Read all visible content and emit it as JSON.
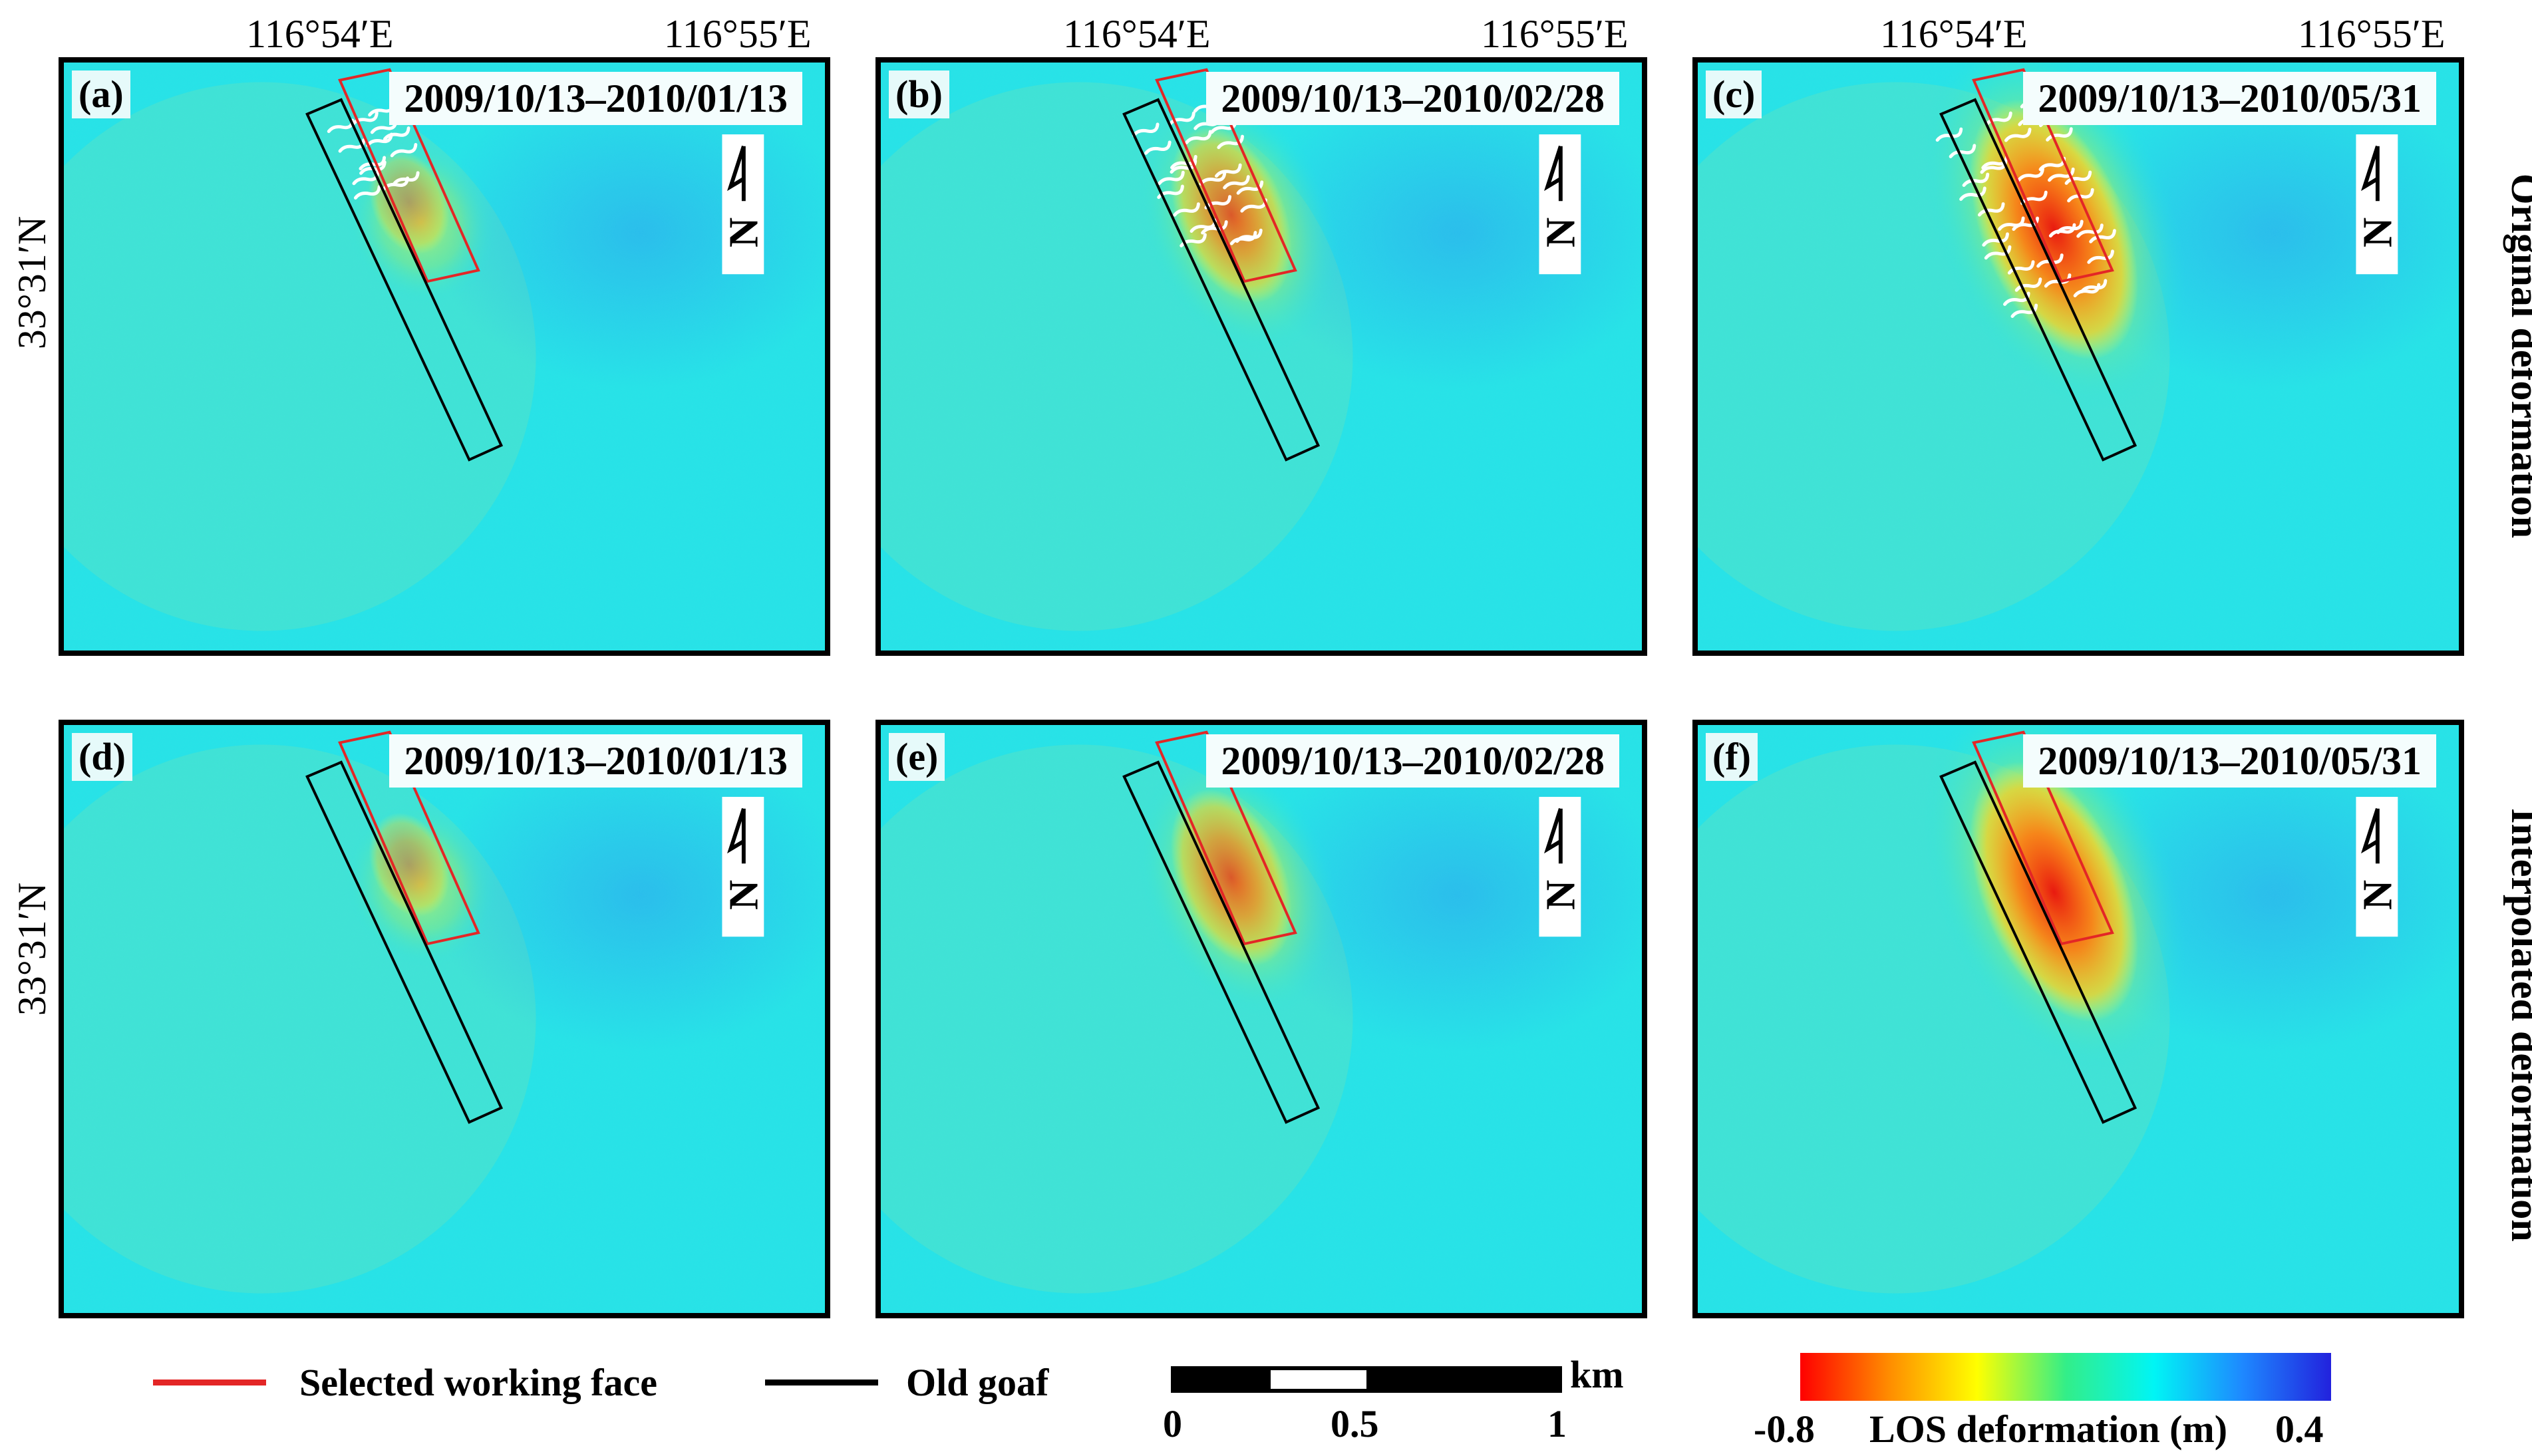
{
  "panels": [
    {
      "tag": "(a)",
      "date": "2009/10/13–2010/01/13",
      "level": 0.25,
      "holes": true
    },
    {
      "tag": "(b)",
      "date": "2009/10/13–2010/02/28",
      "level": 0.6,
      "holes": true
    },
    {
      "tag": "(c)",
      "date": "2009/10/13–2010/05/31",
      "level": 1.0,
      "holes": true
    },
    {
      "tag": "(d)",
      "date": "2009/10/13–2010/01/13",
      "level": 0.25,
      "holes": false
    },
    {
      "tag": "(e)",
      "date": "2009/10/13–2010/02/28",
      "level": 0.6,
      "holes": false
    },
    {
      "tag": "(f)",
      "date": "2009/10/13–2010/05/31",
      "level": 1.0,
      "holes": false
    }
  ],
  "north_arrow_letter": "N",
  "longitude_labels": [
    "116°54′E",
    "116°55′E"
  ],
  "latitude_label": "33°31′N",
  "row_labels": [
    "Original deformation",
    "Interpolated deformation"
  ],
  "legend": {
    "working_face": {
      "label": "Selected working face",
      "color": "#e32626"
    },
    "old_goaf": {
      "label": "Old goaf",
      "color": "#000000"
    }
  },
  "scale_bar": {
    "unit": "km",
    "ticks": [
      "0",
      "0.5",
      "1"
    ]
  },
  "colorbar": {
    "min_label": "-0.8",
    "max_label": "0.4",
    "title": "LOS deformation (m)",
    "colors": [
      "#ff0000",
      "#ff8c00",
      "#ffff00",
      "#33ee88",
      "#00f5f5",
      "#1e88ff",
      "#2222dd"
    ]
  }
}
